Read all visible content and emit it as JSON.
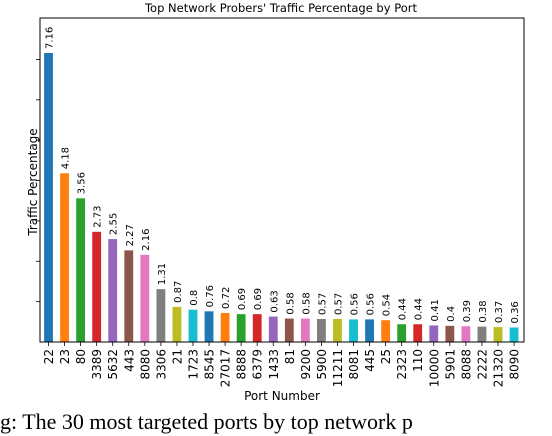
{
  "chart_data": {
    "type": "bar",
    "title": "Top Network Probers' Traffic Percentage by Port",
    "xlabel": "Port Number",
    "ylabel": "Traffic Percentage",
    "ylim": [
      0,
      7.16
    ],
    "grid": false,
    "legend": "none",
    "categories": [
      "22",
      "23",
      "80",
      "3389",
      "5632",
      "443",
      "8080",
      "3306",
      "21",
      "1723",
      "8545",
      "27017",
      "8888",
      "6379",
      "1433",
      "81",
      "9200",
      "5900",
      "11211",
      "8081",
      "445",
      "25",
      "2323",
      "110",
      "10000",
      "5901",
      "8088",
      "2222",
      "21320",
      "8090"
    ],
    "values": [
      7.16,
      4.18,
      3.56,
      2.73,
      2.55,
      2.27,
      2.16,
      1.31,
      0.87,
      0.8,
      0.76,
      0.72,
      0.69,
      0.69,
      0.63,
      0.58,
      0.58,
      0.57,
      0.57,
      0.56,
      0.56,
      0.54,
      0.44,
      0.44,
      0.41,
      0.4,
      0.39,
      0.38,
      0.37,
      0.36
    ],
    "value_labels": [
      "7.16",
      "4.18",
      "3.56",
      "2.73",
      "2.55",
      "2.27",
      "2.16",
      "1.31",
      "0.87",
      "0.8",
      "0.76",
      "0.72",
      "0.69",
      "0.69",
      "0.63",
      "0.58",
      "0.58",
      "0.57",
      "0.57",
      "0.56",
      "0.56",
      "0.54",
      "0.44",
      "0.44",
      "0.41",
      "0.4",
      "0.39",
      "0.38",
      "0.37",
      "0.36"
    ],
    "colors": [
      "#1f77b4",
      "#ff7f0e",
      "#2ca02c",
      "#d62728",
      "#9467bd",
      "#8c564b",
      "#e377c2",
      "#7f7f7f",
      "#bcbd22",
      "#17becf"
    ]
  },
  "caption": {
    "text": "g: The 30 most targeted ports by top network p"
  }
}
